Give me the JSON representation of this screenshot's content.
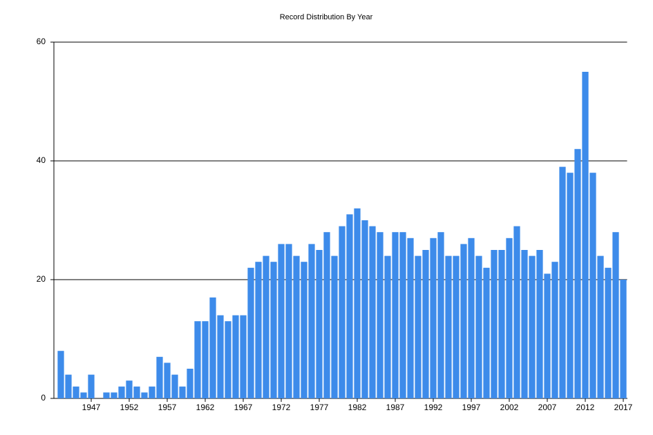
{
  "chart_data": {
    "type": "bar",
    "title": "Record Distribution By Year",
    "categories": [
      null,
      null,
      null,
      null,
      "1947",
      null,
      null,
      null,
      null,
      "1952",
      null,
      null,
      null,
      null,
      "1957",
      null,
      null,
      null,
      null,
      "1962",
      null,
      null,
      null,
      null,
      "1967",
      null,
      null,
      null,
      null,
      "1972",
      null,
      null,
      null,
      null,
      "1977",
      null,
      null,
      null,
      null,
      "1982",
      null,
      null,
      null,
      null,
      "1987",
      null,
      null,
      null,
      null,
      "1992",
      null,
      null,
      null,
      null,
      "1997",
      null,
      null,
      null,
      null,
      "2002",
      null,
      null,
      null,
      null,
      "2007",
      null,
      null,
      null,
      null,
      "2012",
      null,
      null,
      null,
      null,
      "2017"
    ],
    "values": [
      8,
      4,
      2,
      1,
      4,
      0,
      1,
      1,
      2,
      3,
      2,
      1,
      2,
      7,
      6,
      4,
      2,
      5,
      13,
      13,
      17,
      14,
      13,
      14,
      14,
      22,
      23,
      24,
      23,
      26,
      26,
      24,
      23,
      26,
      25,
      28,
      24,
      29,
      31,
      32,
      30,
      29,
      28,
      24,
      28,
      28,
      27,
      24,
      25,
      27,
      28,
      24,
      24,
      26,
      27,
      24,
      22,
      25,
      25,
      27,
      29,
      25,
      24,
      25,
      21,
      23,
      39,
      38,
      42,
      55,
      38,
      24,
      22,
      28,
      20
    ],
    "color": "#3d8bea",
    "ylim": [
      0,
      60
    ],
    "yticks": [
      0,
      20,
      40,
      60
    ],
    "grid": true
  }
}
